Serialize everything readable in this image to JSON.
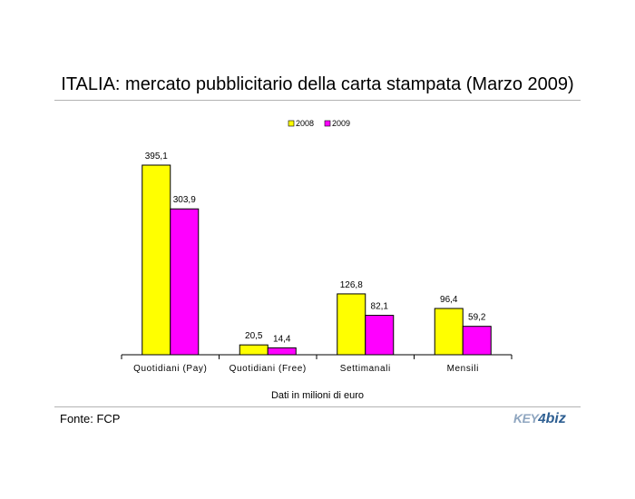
{
  "page": {
    "title": "ITALIA: mercato pubblicitario della carta stampata (Marzo 2009)",
    "caption": "Dati in milioni di euro",
    "source": "Fonte: FCP",
    "logo": {
      "part1": "KEY",
      "part2": "4",
      "part3": "biz"
    }
  },
  "chart_data": {
    "type": "bar",
    "title": "ITALIA: mercato pubblicitario della carta stampata (Marzo 2009)",
    "xlabel": "Dati in milioni di euro",
    "ylabel": "",
    "categories": [
      "Quotidiani (Pay)",
      "Quotidiani (Free)",
      "Settimanali",
      "Mensili"
    ],
    "series": [
      {
        "name": "2008",
        "color": "#ffff00",
        "values": [
          395.1,
          20.5,
          126.8,
          96.4
        ],
        "labels": [
          "395,1",
          "20,5",
          "126,8",
          "96,4"
        ]
      },
      {
        "name": "2009",
        "color": "#ff00ff",
        "values": [
          303.9,
          14.4,
          82.1,
          59.2
        ],
        "labels": [
          "303,9",
          "14,4",
          "82,1",
          "59,2"
        ]
      }
    ],
    "ylim": [
      0,
      395.1
    ],
    "grid": false,
    "legend": "top-center"
  }
}
